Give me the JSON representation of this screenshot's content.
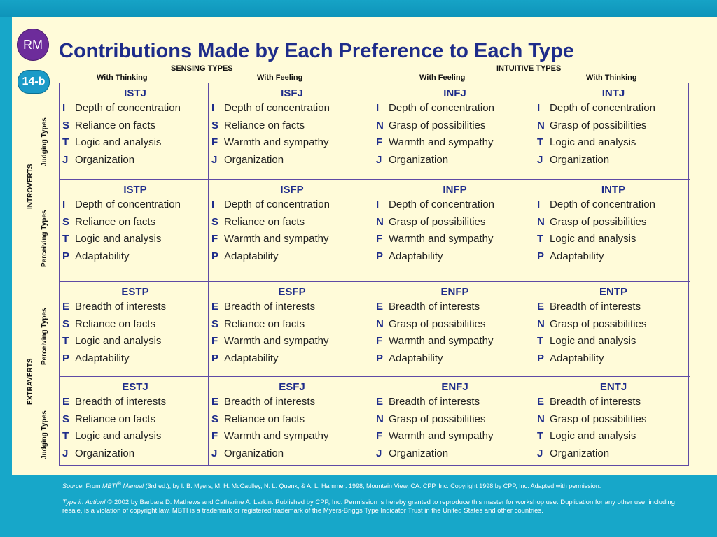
{
  "badge": {
    "rm": "RM",
    "code": "14-b"
  },
  "title": "Contributions Made by Each Preference to Each Type",
  "headers": {
    "sensing": "SENSING TYPES",
    "intuitive": "INTUITIVE TYPES",
    "columns": [
      "With Thinking",
      "With Feeling",
      "With Feeling",
      "With Thinking"
    ]
  },
  "side_labels": {
    "introverts": "INTROVERTS",
    "extraverts": "EXTRAVERTS",
    "rows": [
      "Judging Types",
      "Perceiving Types",
      "Perceiving Types",
      "Judging Types"
    ]
  },
  "rows": [
    [
      {
        "type": "ISTJ",
        "prefs": [
          [
            "I",
            "Depth of concentration"
          ],
          [
            "S",
            "Reliance on facts"
          ],
          [
            "T",
            "Logic and analysis"
          ],
          [
            "J",
            "Organization"
          ]
        ]
      },
      {
        "type": "ISFJ",
        "prefs": [
          [
            "I",
            "Depth of concentration"
          ],
          [
            "S",
            "Reliance on facts"
          ],
          [
            "F",
            "Warmth and sympathy"
          ],
          [
            "J",
            "Organization"
          ]
        ]
      },
      {
        "type": "INFJ",
        "prefs": [
          [
            "I",
            "Depth of concentration"
          ],
          [
            "N",
            "Grasp of possibilities"
          ],
          [
            "F",
            "Warmth and sympathy"
          ],
          [
            "J",
            "Organization"
          ]
        ]
      },
      {
        "type": "INTJ",
        "prefs": [
          [
            "I",
            "Depth of concentration"
          ],
          [
            "N",
            "Grasp of possibilities"
          ],
          [
            "T",
            "Logic and analysis"
          ],
          [
            "J",
            "Organization"
          ]
        ]
      }
    ],
    [
      {
        "type": "ISTP",
        "prefs": [
          [
            "I",
            "Depth of concentration"
          ],
          [
            "S",
            "Reliance on facts"
          ],
          [
            "T",
            "Logic and analysis"
          ],
          [
            "P",
            "Adaptability"
          ]
        ]
      },
      {
        "type": "ISFP",
        "prefs": [
          [
            "I",
            "Depth of concentration"
          ],
          [
            "S",
            "Reliance on facts"
          ],
          [
            "F",
            "Warmth and sympathy"
          ],
          [
            "P",
            "Adaptability"
          ]
        ]
      },
      {
        "type": "INFP",
        "prefs": [
          [
            "I",
            "Depth of concentration"
          ],
          [
            "N",
            "Grasp of possibilities"
          ],
          [
            "F",
            "Warmth and sympathy"
          ],
          [
            "P",
            "Adaptability"
          ]
        ]
      },
      {
        "type": "INTP",
        "prefs": [
          [
            "I",
            "Depth of concentration"
          ],
          [
            "N",
            "Grasp of possibilities"
          ],
          [
            "T",
            "Logic and analysis"
          ],
          [
            "P",
            "Adaptability"
          ]
        ]
      }
    ],
    [
      {
        "type": "ESTP",
        "prefs": [
          [
            "E",
            "Breadth of interests"
          ],
          [
            "S",
            "Reliance on facts"
          ],
          [
            "T",
            "Logic and analysis"
          ],
          [
            "P",
            "Adaptability"
          ]
        ]
      },
      {
        "type": "ESFP",
        "prefs": [
          [
            "E",
            "Breadth of interests"
          ],
          [
            "S",
            "Reliance on facts"
          ],
          [
            "F",
            "Warmth and sympathy"
          ],
          [
            "P",
            "Adaptability"
          ]
        ]
      },
      {
        "type": "ENFP",
        "prefs": [
          [
            "E",
            "Breadth of interests"
          ],
          [
            "N",
            "Grasp of possibilities"
          ],
          [
            "F",
            "Warmth and sympathy"
          ],
          [
            "P",
            "Adaptability"
          ]
        ]
      },
      {
        "type": "ENTP",
        "prefs": [
          [
            "E",
            "Breadth of interests"
          ],
          [
            "N",
            "Grasp of possibilities"
          ],
          [
            "T",
            "Logic and analysis"
          ],
          [
            "P",
            "Adaptability"
          ]
        ]
      }
    ],
    [
      {
        "type": "ESTJ",
        "prefs": [
          [
            "E",
            "Breadth of interests"
          ],
          [
            "S",
            "Reliance on facts"
          ],
          [
            "T",
            "Logic and analysis"
          ],
          [
            "J",
            "Organization"
          ]
        ]
      },
      {
        "type": "ESFJ",
        "prefs": [
          [
            "E",
            "Breadth of interests"
          ],
          [
            "S",
            "Reliance on facts"
          ],
          [
            "F",
            "Warmth and sympathy"
          ],
          [
            "J",
            "Organization"
          ]
        ]
      },
      {
        "type": "ENFJ",
        "prefs": [
          [
            "E",
            "Breadth of interests"
          ],
          [
            "N",
            "Grasp of possibilities"
          ],
          [
            "F",
            "Warmth and sympathy"
          ],
          [
            "J",
            "Organization"
          ]
        ]
      },
      {
        "type": "ENTJ",
        "prefs": [
          [
            "E",
            "Breadth of interests"
          ],
          [
            "N",
            "Grasp of possibilities"
          ],
          [
            "T",
            "Logic and analysis"
          ],
          [
            "J",
            "Organization"
          ]
        ]
      }
    ]
  ],
  "footer": {
    "source_label": "Source:",
    "source_pre": " From ",
    "source_title": "MBTI",
    "source_reg": "®",
    "source_manual": " Manual",
    "source_rest": " (3rd ed.), by I. B. Myers, M. H. McCaulley, N. L. Quenk, & A. L. Hammer. 1998, Mountain View, CA: CPP, Inc. Copyright 1998 by CPP, Inc. Adapted with permission.",
    "note_title": "Type in Action!",
    "note_rest": " © 2002 by Barbara D. Mathews and Catharine A. Larkin. Published by CPP, Inc. Permission is hereby granted to reproduce this master for workshop use. Duplication for any other use, including resale, is a violation of copyright law. MBTI is a trademark or registered trademark of the Myers-Briggs Type Indicator Trust in the United States and other countries."
  },
  "colors": {
    "accent_blue": "#1e2c8a",
    "teal": "#17a7c9",
    "cream": "#fffbd9",
    "purple": "#6d2c9b"
  }
}
